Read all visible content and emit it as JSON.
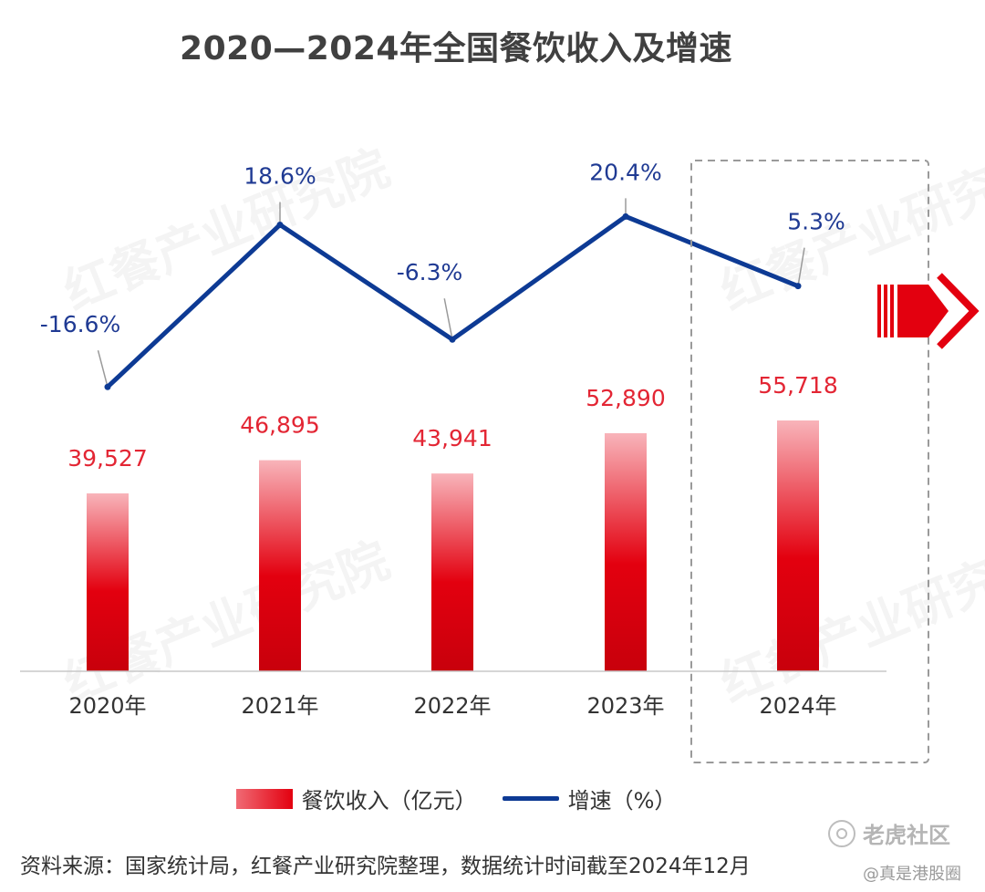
{
  "chart_data": {
    "title": "2020—2024年全国餐饮收入及增速",
    "categories": [
      "2020年",
      "2021年",
      "2022年",
      "2023年",
      "2024年"
    ],
    "series": [
      {
        "name": "餐饮收入（亿元）",
        "type": "bar",
        "values": [
          39527,
          46895,
          43941,
          52890,
          55718
        ],
        "labels": [
          "39,527",
          "46,895",
          "43,941",
          "52,890",
          "55,718"
        ],
        "color": "#e3000f",
        "label_color": "#e32634"
      },
      {
        "name": "增速（%）",
        "type": "line",
        "values": [
          -16.6,
          18.6,
          -6.3,
          20.4,
          5.3
        ],
        "labels": [
          "-16.6%",
          "18.6%",
          "-6.3%",
          "20.4%",
          "5.3%"
        ],
        "color": "#0d3a94",
        "label_color": "#1f3a93"
      }
    ],
    "highlight_category": "2024年",
    "grid": false,
    "legend_position": "bottom"
  },
  "legend": {
    "bar_label": "餐饮收入（亿元）",
    "line_label": "增速（%）"
  },
  "source": "资料来源：国家统计局，红餐产业研究院整理，数据统计时间截至2024年12月",
  "watermark": {
    "brand": "红餐产业研究院",
    "site": "老虎社区",
    "sub": "@真是港股圈"
  }
}
